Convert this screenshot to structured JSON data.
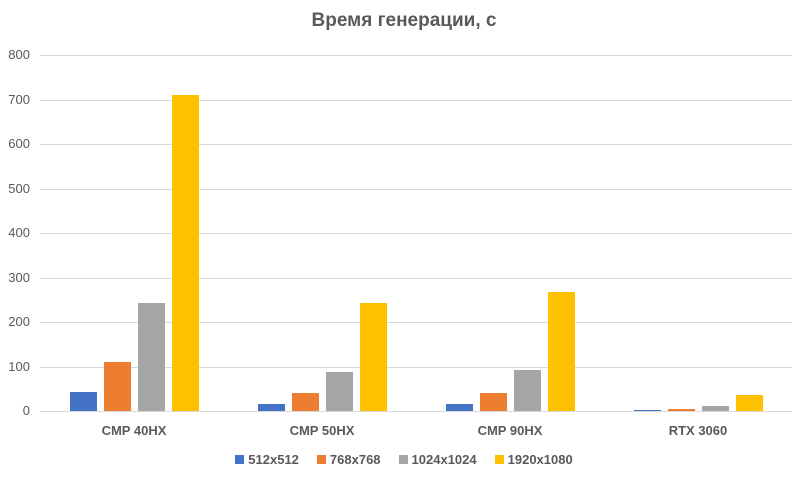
{
  "chart_data": {
    "type": "bar",
    "title": "Время генерации, с",
    "xlabel": "",
    "ylabel": "",
    "ylim": [
      0,
      800
    ],
    "yticks": [
      0,
      100,
      200,
      300,
      400,
      500,
      600,
      700,
      800
    ],
    "grid": true,
    "legend_position": "bottom",
    "categories": [
      "CMP 40HX",
      "CMP 50HX",
      "CMP 90HX",
      "RTX 3060"
    ],
    "series": [
      {
        "name": "512x512",
        "color": "#4472c4",
        "values": [
          43,
          16,
          16,
          3
        ]
      },
      {
        "name": "768x768",
        "color": "#ed7d31",
        "values": [
          110,
          40,
          40,
          5
        ]
      },
      {
        "name": "1024x1024",
        "color": "#a5a5a5",
        "values": [
          243,
          88,
          92,
          12
        ]
      },
      {
        "name": "1920x1080",
        "color": "#ffc000",
        "values": [
          710,
          243,
          267,
          35
        ]
      }
    ]
  }
}
